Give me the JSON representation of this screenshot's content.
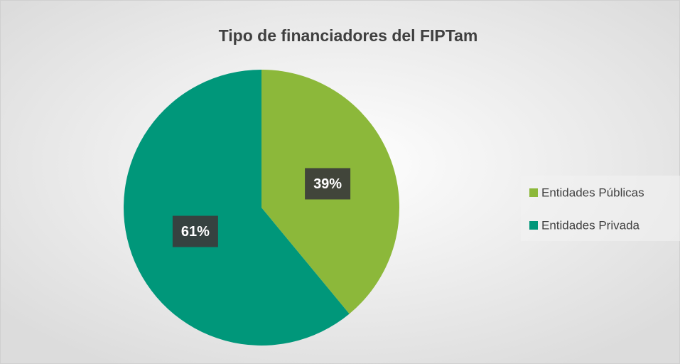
{
  "chart_data": {
    "type": "pie",
    "title": "Tipo de financiadores del FIPTam",
    "categories": [
      "Entidades Públicas",
      "Entidades Privada"
    ],
    "values": [
      39,
      61
    ],
    "value_labels": [
      "39%",
      "61%"
    ],
    "colors": [
      "#8cb83a",
      "#00977a"
    ],
    "legend": "right"
  }
}
